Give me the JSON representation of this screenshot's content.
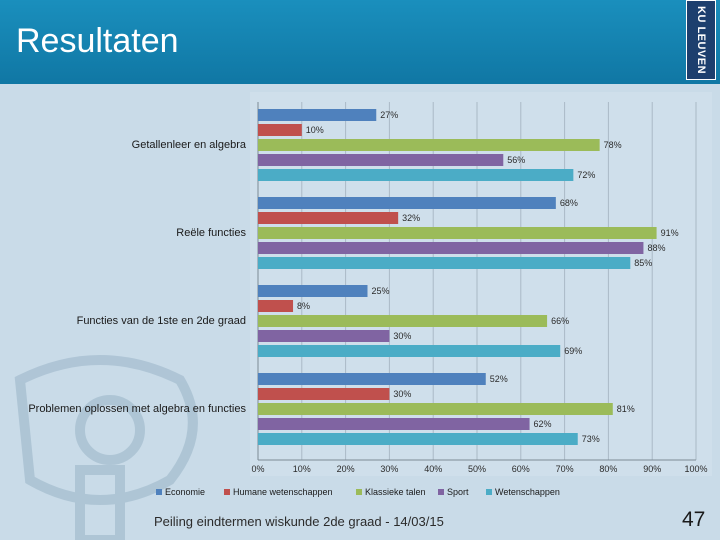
{
  "slide": {
    "title": "Resultaten",
    "logo_text": "KU LEUVEN",
    "footer": "Peiling eindtermen wiskunde 2de graad - 14/03/15",
    "page_number": "47"
  },
  "colors": {
    "header": "#1680b0",
    "Economie": "#4f81bd",
    "Humane wetenschappen": "#c0504d",
    "Klassieke talen": "#9bbb59",
    "Sport": "#8064a2",
    "Wetenschappen": "#4bacc6"
  },
  "chart_data": {
    "type": "bar",
    "orientation": "horizontal",
    "categories": [
      "Getallenleer en algebra",
      "Reële functies",
      "Functies van de 1ste en 2de graad",
      "Problemen oplossen met algebra en functies"
    ],
    "series": [
      {
        "name": "Economie",
        "values": [
          27,
          68,
          25,
          52
        ]
      },
      {
        "name": "Humane wetenschappen",
        "values": [
          10,
          32,
          8,
          30
        ]
      },
      {
        "name": "Klassieke talen",
        "values": [
          78,
          91,
          66,
          81
        ]
      },
      {
        "name": "Sport",
        "values": [
          56,
          88,
          30,
          62
        ]
      },
      {
        "name": "Wetenschappen",
        "values": [
          72,
          85,
          69,
          73
        ]
      }
    ],
    "xlim": [
      0,
      100
    ],
    "xticks": [
      "0%",
      "10%",
      "20%",
      "30%",
      "40%",
      "50%",
      "60%",
      "70%",
      "80%",
      "90%",
      "100%"
    ],
    "value_suffix": "%",
    "legend_position": "bottom",
    "grid": true
  }
}
